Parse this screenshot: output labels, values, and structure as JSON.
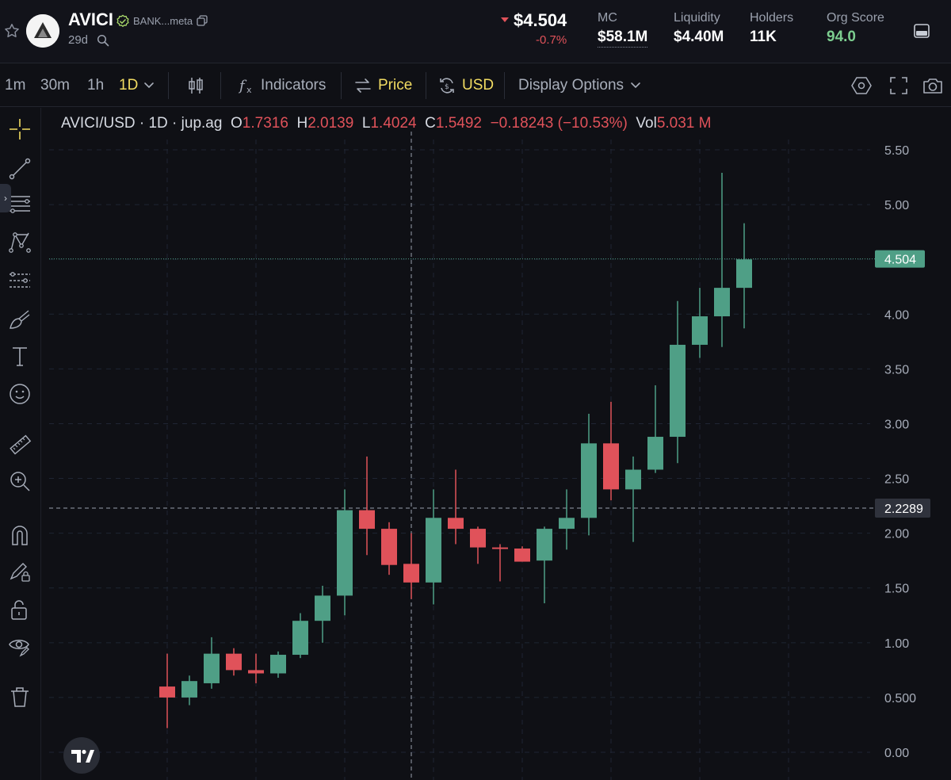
{
  "header": {
    "token_name": "AVICI",
    "token_tag": "BANK...meta",
    "age": "29d",
    "price": "$4.504",
    "price_change": "-0.7%",
    "stats": [
      {
        "label": "MC",
        "value": "$58.1M"
      },
      {
        "label": "Liquidity",
        "value": "$4.40M"
      },
      {
        "label": "Holders",
        "value": "11K"
      },
      {
        "label": "Org Score",
        "value": "94.0"
      }
    ]
  },
  "toolbar": {
    "intervals": [
      "1m",
      "30m",
      "1h",
      "1D"
    ],
    "active_interval": "1D",
    "indicators_label": "Indicators",
    "price_label": "Price",
    "currency_label": "USD",
    "display_options_label": "Display Options"
  },
  "legend": {
    "symbol": "AVICI/USD · 1D · jup.ag",
    "o_label": "O",
    "o_value": "1.7316",
    "h_label": "H",
    "h_value": "2.0139",
    "l_label": "L",
    "l_value": "1.4024",
    "c_label": "C",
    "c_value": "1.5492",
    "change": "−0.18243 (−10.53%)",
    "vol_label": "Vol",
    "vol_value": "5.031 M"
  },
  "colors": {
    "up": "#4f9f86",
    "down": "#e0525a",
    "accent": "#f2dc62",
    "price_tag_bg": "#4f9f86",
    "crosshair_tag_bg": "#2f323c"
  },
  "chart_data": {
    "type": "candlestick",
    "ylim": [
      0,
      5.6
    ],
    "y_ticks": [
      "0.00",
      "0.500",
      "1.00",
      "1.50",
      "2.00",
      "2.50",
      "3.00",
      "3.50",
      "4.00",
      "4.50",
      "5.00",
      "5.50"
    ],
    "y_tick_values": [
      0,
      0.5,
      1.0,
      1.5,
      2.0,
      2.5,
      3.0,
      3.5,
      4.0,
      4.5,
      5.0,
      5.5
    ],
    "last_price": 4.504,
    "last_price_label": "4.504",
    "crosshair_price": 2.2289,
    "crosshair_price_label": "2.2289",
    "candles": [
      {
        "o": 0.6,
        "h": 0.9,
        "l": 0.22,
        "c": 0.5
      },
      {
        "o": 0.5,
        "h": 0.7,
        "l": 0.43,
        "c": 0.65
      },
      {
        "o": 0.63,
        "h": 1.05,
        "l": 0.58,
        "c": 0.9
      },
      {
        "o": 0.9,
        "h": 0.95,
        "l": 0.7,
        "c": 0.75
      },
      {
        "o": 0.75,
        "h": 0.9,
        "l": 0.63,
        "c": 0.72
      },
      {
        "o": 0.72,
        "h": 0.92,
        "l": 0.68,
        "c": 0.89
      },
      {
        "o": 0.89,
        "h": 1.27,
        "l": 0.86,
        "c": 1.2
      },
      {
        "o": 1.2,
        "h": 1.52,
        "l": 1.0,
        "c": 1.43
      },
      {
        "o": 1.43,
        "h": 2.4,
        "l": 1.25,
        "c": 2.21
      },
      {
        "o": 2.21,
        "h": 2.7,
        "l": 1.8,
        "c": 2.04
      },
      {
        "o": 2.04,
        "h": 2.1,
        "l": 1.62,
        "c": 1.71
      },
      {
        "o": 1.72,
        "h": 2.0,
        "l": 1.4,
        "c": 1.55
      },
      {
        "o": 1.55,
        "h": 2.4,
        "l": 1.35,
        "c": 2.14
      },
      {
        "o": 2.14,
        "h": 2.58,
        "l": 1.9,
        "c": 2.04
      },
      {
        "o": 2.04,
        "h": 2.06,
        "l": 1.72,
        "c": 1.87
      },
      {
        "o": 1.87,
        "h": 1.9,
        "l": 1.56,
        "c": 1.86
      },
      {
        "o": 1.86,
        "h": 1.88,
        "l": 1.74,
        "c": 1.74
      },
      {
        "o": 1.75,
        "h": 2.06,
        "l": 1.36,
        "c": 2.04
      },
      {
        "o": 2.04,
        "h": 2.4,
        "l": 1.85,
        "c": 2.14
      },
      {
        "o": 2.14,
        "h": 3.09,
        "l": 1.98,
        "c": 2.82
      },
      {
        "o": 2.82,
        "h": 3.2,
        "l": 2.3,
        "c": 2.4
      },
      {
        "o": 2.4,
        "h": 2.7,
        "l": 1.92,
        "c": 2.58
      },
      {
        "o": 2.58,
        "h": 3.35,
        "l": 2.55,
        "c": 2.88
      },
      {
        "o": 2.88,
        "h": 4.12,
        "l": 2.64,
        "c": 3.72
      },
      {
        "o": 3.72,
        "h": 4.24,
        "l": 3.6,
        "c": 3.98
      },
      {
        "o": 3.98,
        "h": 5.29,
        "l": 3.7,
        "c": 4.24
      },
      {
        "o": 4.24,
        "h": 4.83,
        "l": 3.87,
        "c": 4.5
      }
    ]
  }
}
